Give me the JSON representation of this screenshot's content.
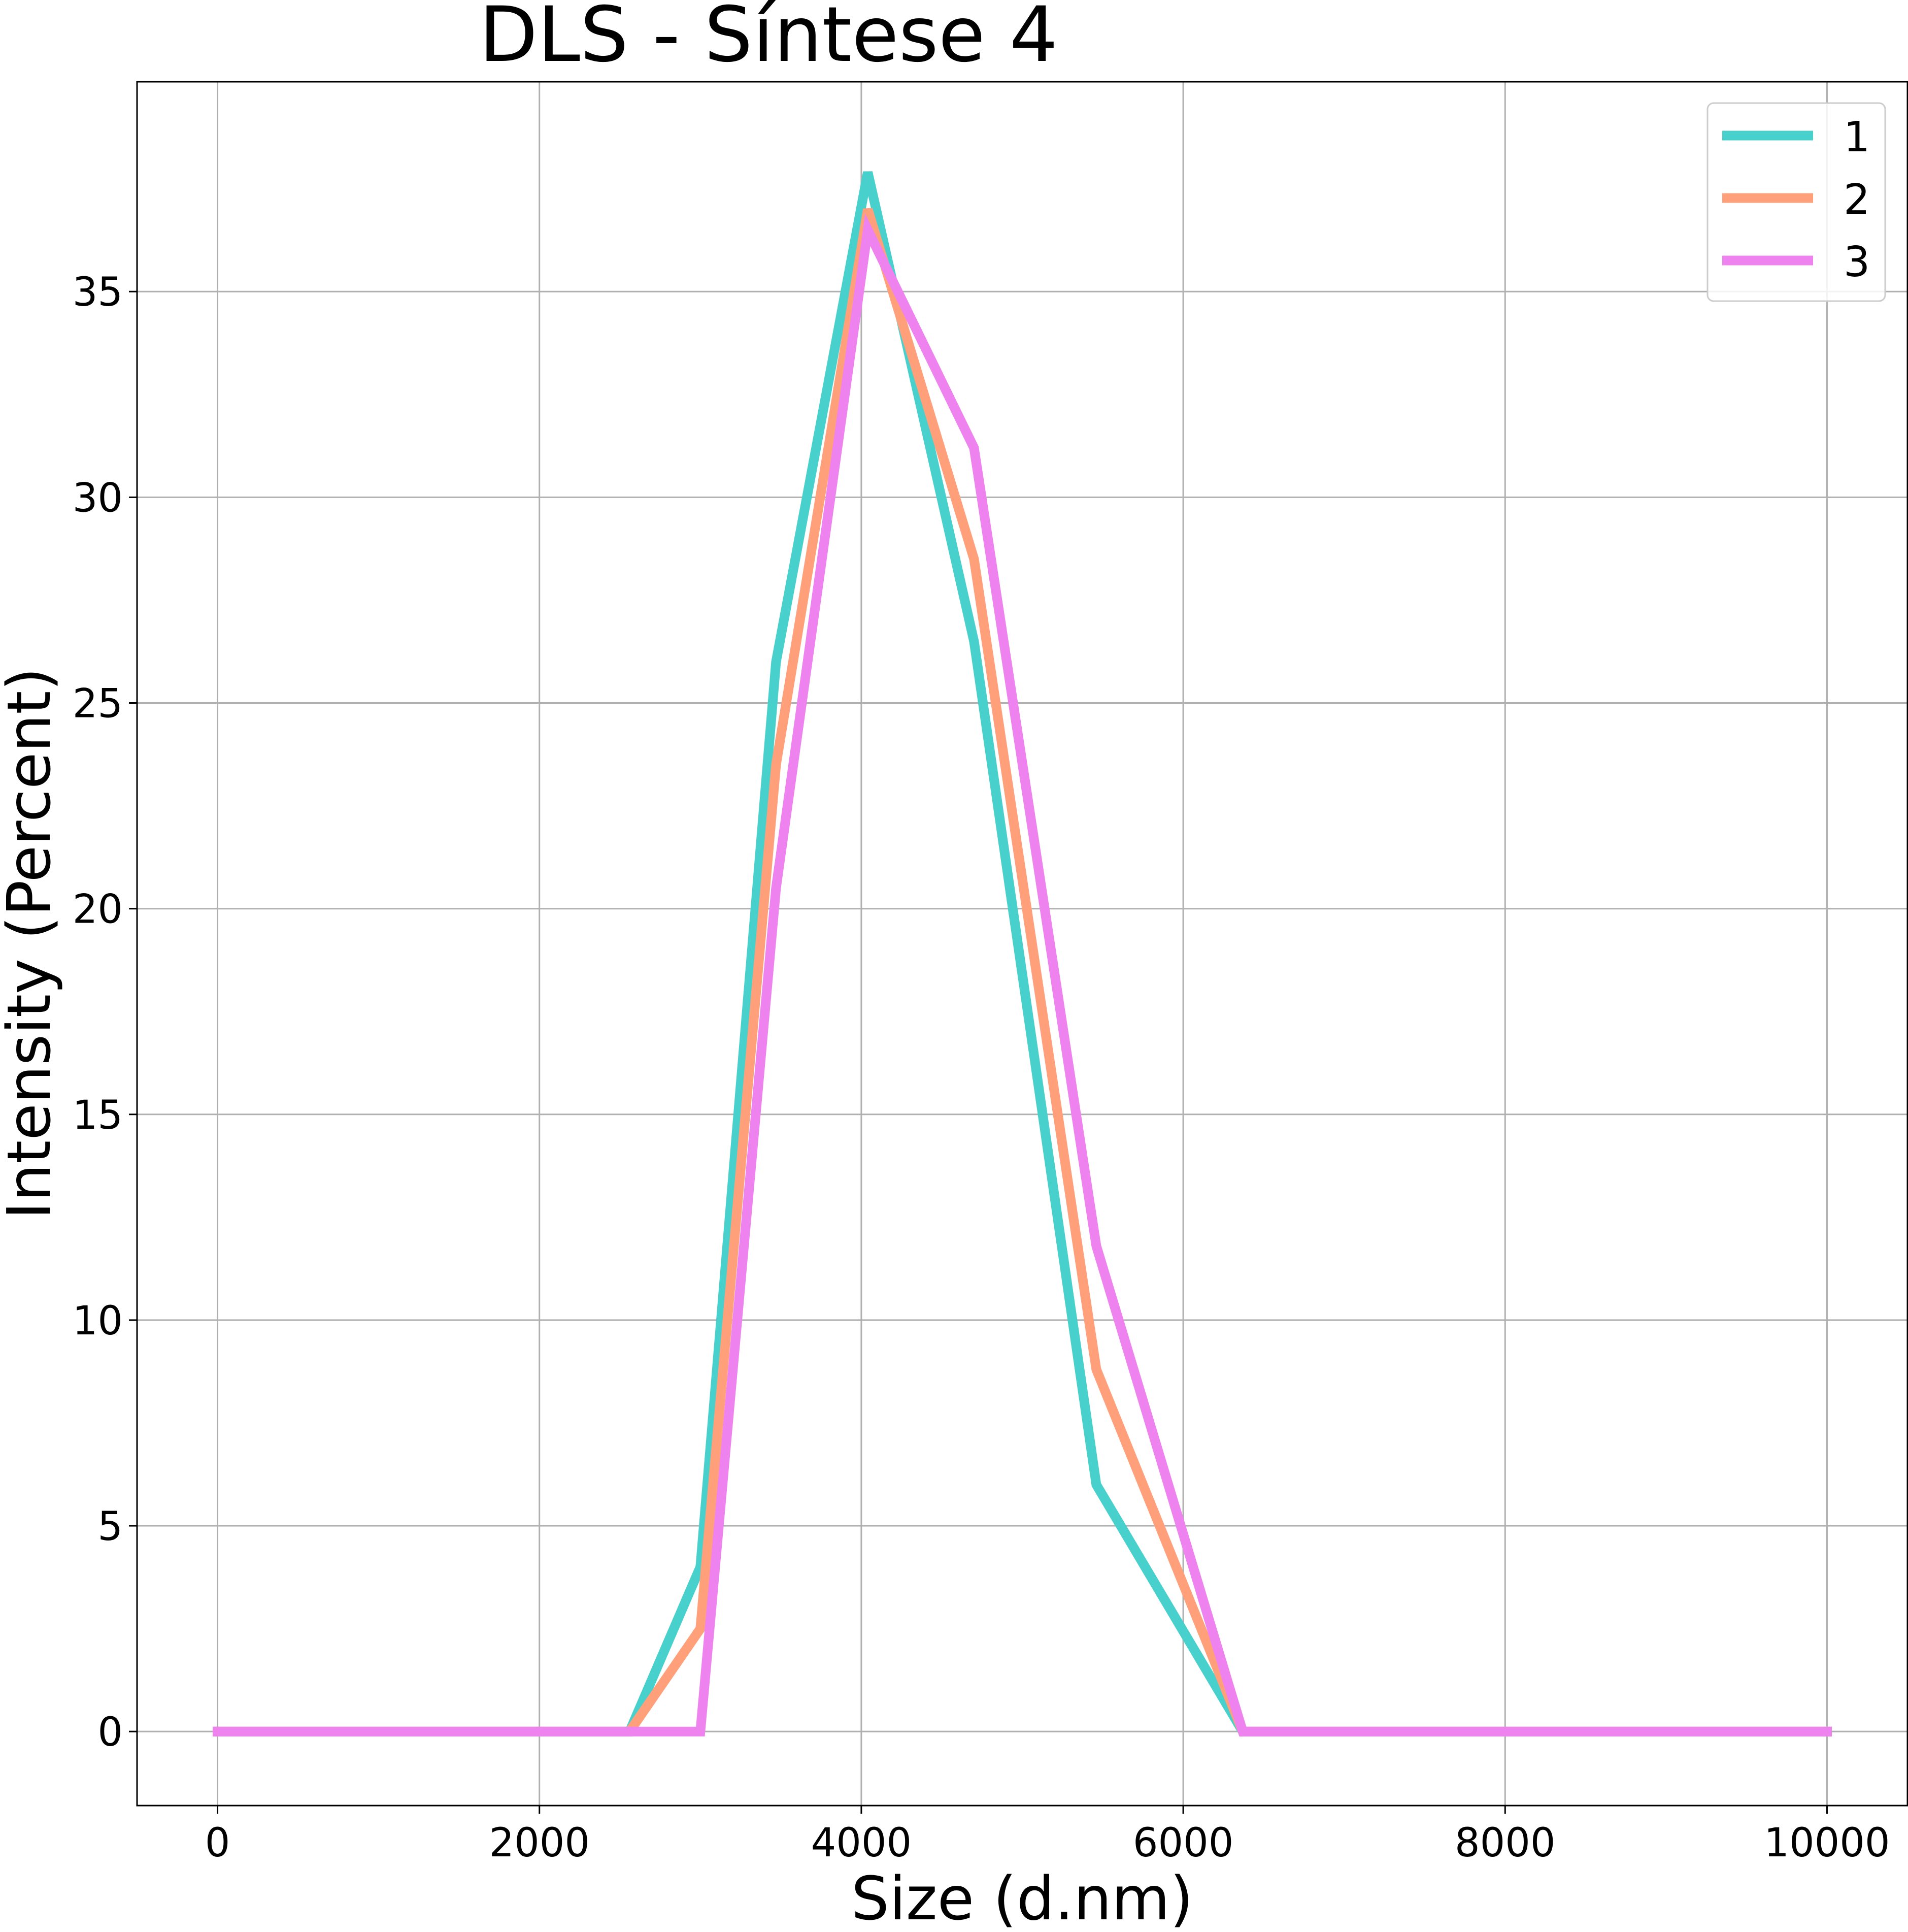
{
  "chart_data": {
    "type": "line",
    "title": "DLS - Síntese 4",
    "xlabel": "Size (d.nm)",
    "ylabel": "Intensity (Percent)",
    "xlim": [
      -500,
      10500
    ],
    "ylim": [
      -1.8,
      40.1
    ],
    "x_ticks": [
      0,
      2000,
      4000,
      6000,
      8000,
      10000
    ],
    "y_ticks": [
      0,
      5,
      10,
      15,
      20,
      25,
      30,
      35
    ],
    "x_tick_labels": [
      "0",
      "2000",
      "4000",
      "6000",
      "8000",
      "10000"
    ],
    "y_tick_labels": [
      "0",
      "5",
      "10",
      "15",
      "20",
      "25",
      "30",
      "35"
    ],
    "grid": true,
    "legend_position": "top-right",
    "series": [
      {
        "name": "1",
        "color": "#48d1cc",
        "points": [
          [
            0,
            0
          ],
          [
            2560,
            0
          ],
          [
            3000,
            4.0
          ],
          [
            3470,
            26.0
          ],
          [
            4040,
            37.9
          ],
          [
            4700,
            26.5
          ],
          [
            5460,
            6.0
          ],
          [
            6370,
            0
          ],
          [
            10000,
            0
          ]
        ]
      },
      {
        "name": "2",
        "color": "#ffa07a",
        "points": [
          [
            0,
            0
          ],
          [
            2560,
            0
          ],
          [
            3000,
            2.5
          ],
          [
            3470,
            23.5
          ],
          [
            4040,
            37.0
          ],
          [
            4700,
            28.5
          ],
          [
            5460,
            8.8
          ],
          [
            6370,
            0
          ],
          [
            10000,
            0
          ]
        ]
      },
      {
        "name": "3",
        "color": "#ee82ee",
        "points": [
          [
            0,
            0
          ],
          [
            2560,
            0
          ],
          [
            3000,
            0
          ],
          [
            3470,
            20.5
          ],
          [
            4040,
            36.5
          ],
          [
            4700,
            31.2
          ],
          [
            5460,
            11.8
          ],
          [
            6370,
            0
          ],
          [
            10000,
            0
          ]
        ]
      }
    ]
  }
}
